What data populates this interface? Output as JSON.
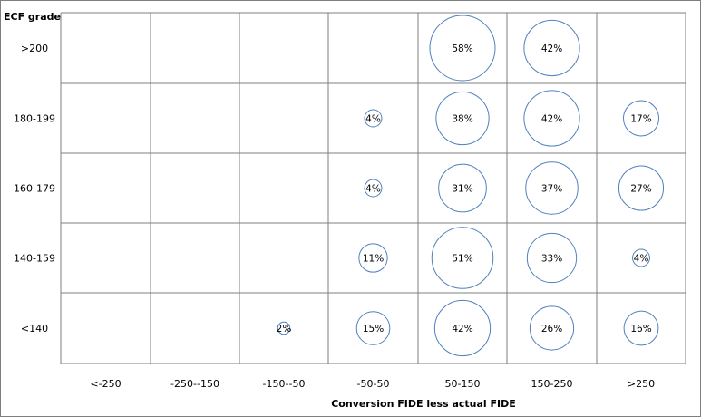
{
  "chart_data": {
    "type": "bubble-grid",
    "title": "",
    "ylabel": "ECF grade",
    "xlabel": "Conversion FIDE less actual FIDE",
    "rows": [
      ">200",
      "180-199",
      "160-179",
      "140-159",
      "<140"
    ],
    "columns": [
      "<-250",
      "-250--150",
      "-150--50",
      "-50-50",
      "50-150",
      "150-250",
      ">250"
    ],
    "values": [
      [
        null,
        null,
        null,
        null,
        58,
        42,
        null
      ],
      [
        null,
        null,
        null,
        4,
        38,
        42,
        17
      ],
      [
        null,
        null,
        null,
        4,
        31,
        37,
        27
      ],
      [
        null,
        null,
        null,
        11,
        51,
        33,
        4
      ],
      [
        null,
        null,
        2,
        15,
        42,
        26,
        16
      ]
    ],
    "value_suffix": "%",
    "grid": true,
    "colors": {
      "bubble_stroke": "#4f81bd",
      "grid": "#7f7f7f"
    }
  }
}
